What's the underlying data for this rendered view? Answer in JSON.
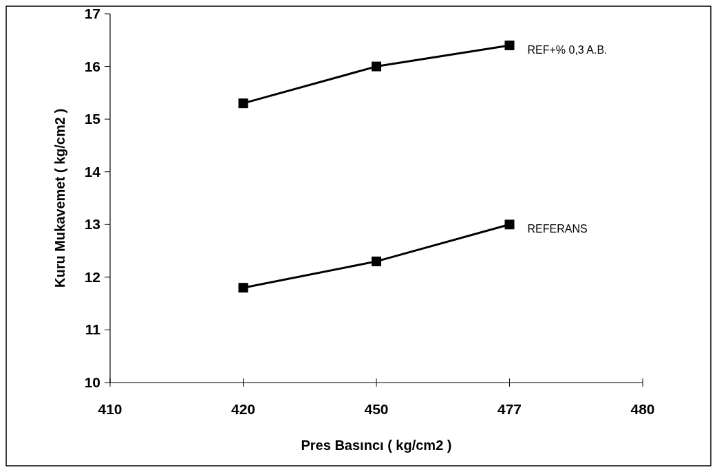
{
  "chart_data": {
    "type": "line",
    "xlabel": "Pres Basıncı ( kg/cm2 )",
    "ylabel": "Kuru Mukavemet ( kg/cm2 )",
    "categories": [
      "410",
      "420",
      "450",
      "477",
      "480"
    ],
    "ylim": [
      10,
      17
    ],
    "yticks": [
      10,
      11,
      12,
      13,
      14,
      15,
      16,
      17
    ],
    "grid": false,
    "legend": false,
    "marker": "square",
    "line_style": "solid",
    "series": [
      {
        "name": "REF+% 0,3 A.B.",
        "color": "#000000",
        "values": [
          null,
          15.3,
          16.0,
          16.4,
          null
        ]
      },
      {
        "name": "REFERANS",
        "color": "#000000",
        "values": [
          null,
          11.8,
          12.3,
          13.0,
          null
        ]
      }
    ]
  }
}
